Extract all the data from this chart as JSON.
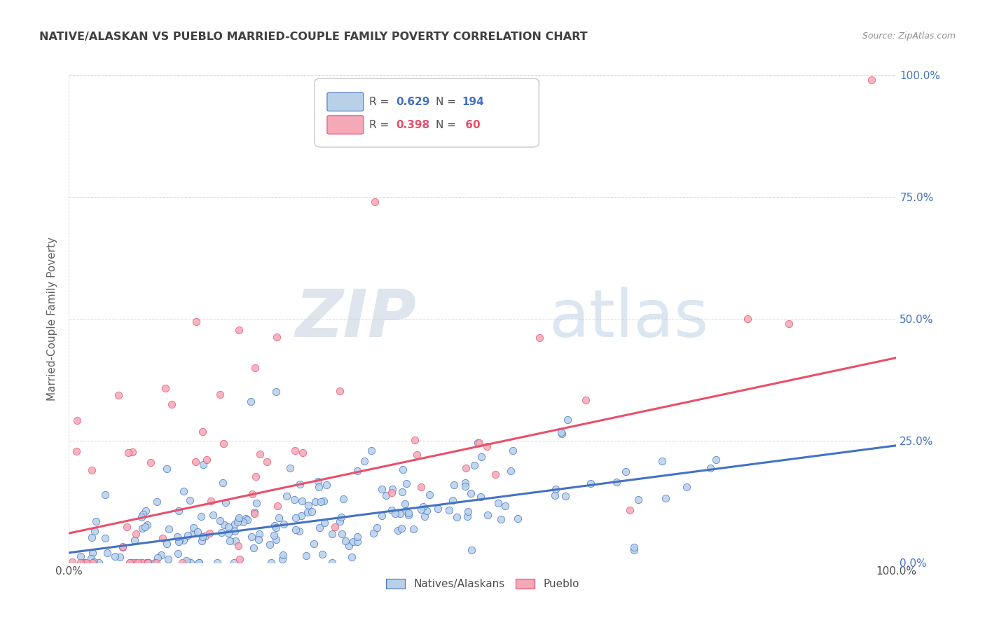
{
  "title": "NATIVE/ALASKAN VS PUEBLO MARRIED-COUPLE FAMILY POVERTY CORRELATION CHART",
  "source": "Source: ZipAtlas.com",
  "ylabel": "Married-Couple Family Poverty",
  "xlim": [
    0,
    1
  ],
  "ylim": [
    0,
    1
  ],
  "xtick_labels": [
    "0.0%",
    "100.0%"
  ],
  "ytick_labels": [
    "0.0%",
    "25.0%",
    "50.0%",
    "75.0%",
    "100.0%"
  ],
  "ytick_positions": [
    0,
    0.25,
    0.5,
    0.75,
    1.0
  ],
  "blue_R": 0.629,
  "blue_N": 194,
  "pink_R": 0.398,
  "pink_N": 60,
  "blue_color": "#b8d0e8",
  "pink_color": "#f4a8b8",
  "blue_line_color": "#4472c4",
  "pink_line_color": "#e8506a",
  "legend_blue_label": "Natives/Alaskans",
  "legend_pink_label": "Pueblo",
  "watermark_zip": "ZIP",
  "watermark_atlas": "atlas",
  "background_color": "#ffffff",
  "grid_color": "#d8d8d8",
  "title_color": "#404040",
  "right_ytick_color": "#4472c4",
  "blue_regression_intercept": 0.02,
  "blue_regression_slope": 0.22,
  "pink_regression_intercept": 0.06,
  "pink_regression_slope": 0.36
}
